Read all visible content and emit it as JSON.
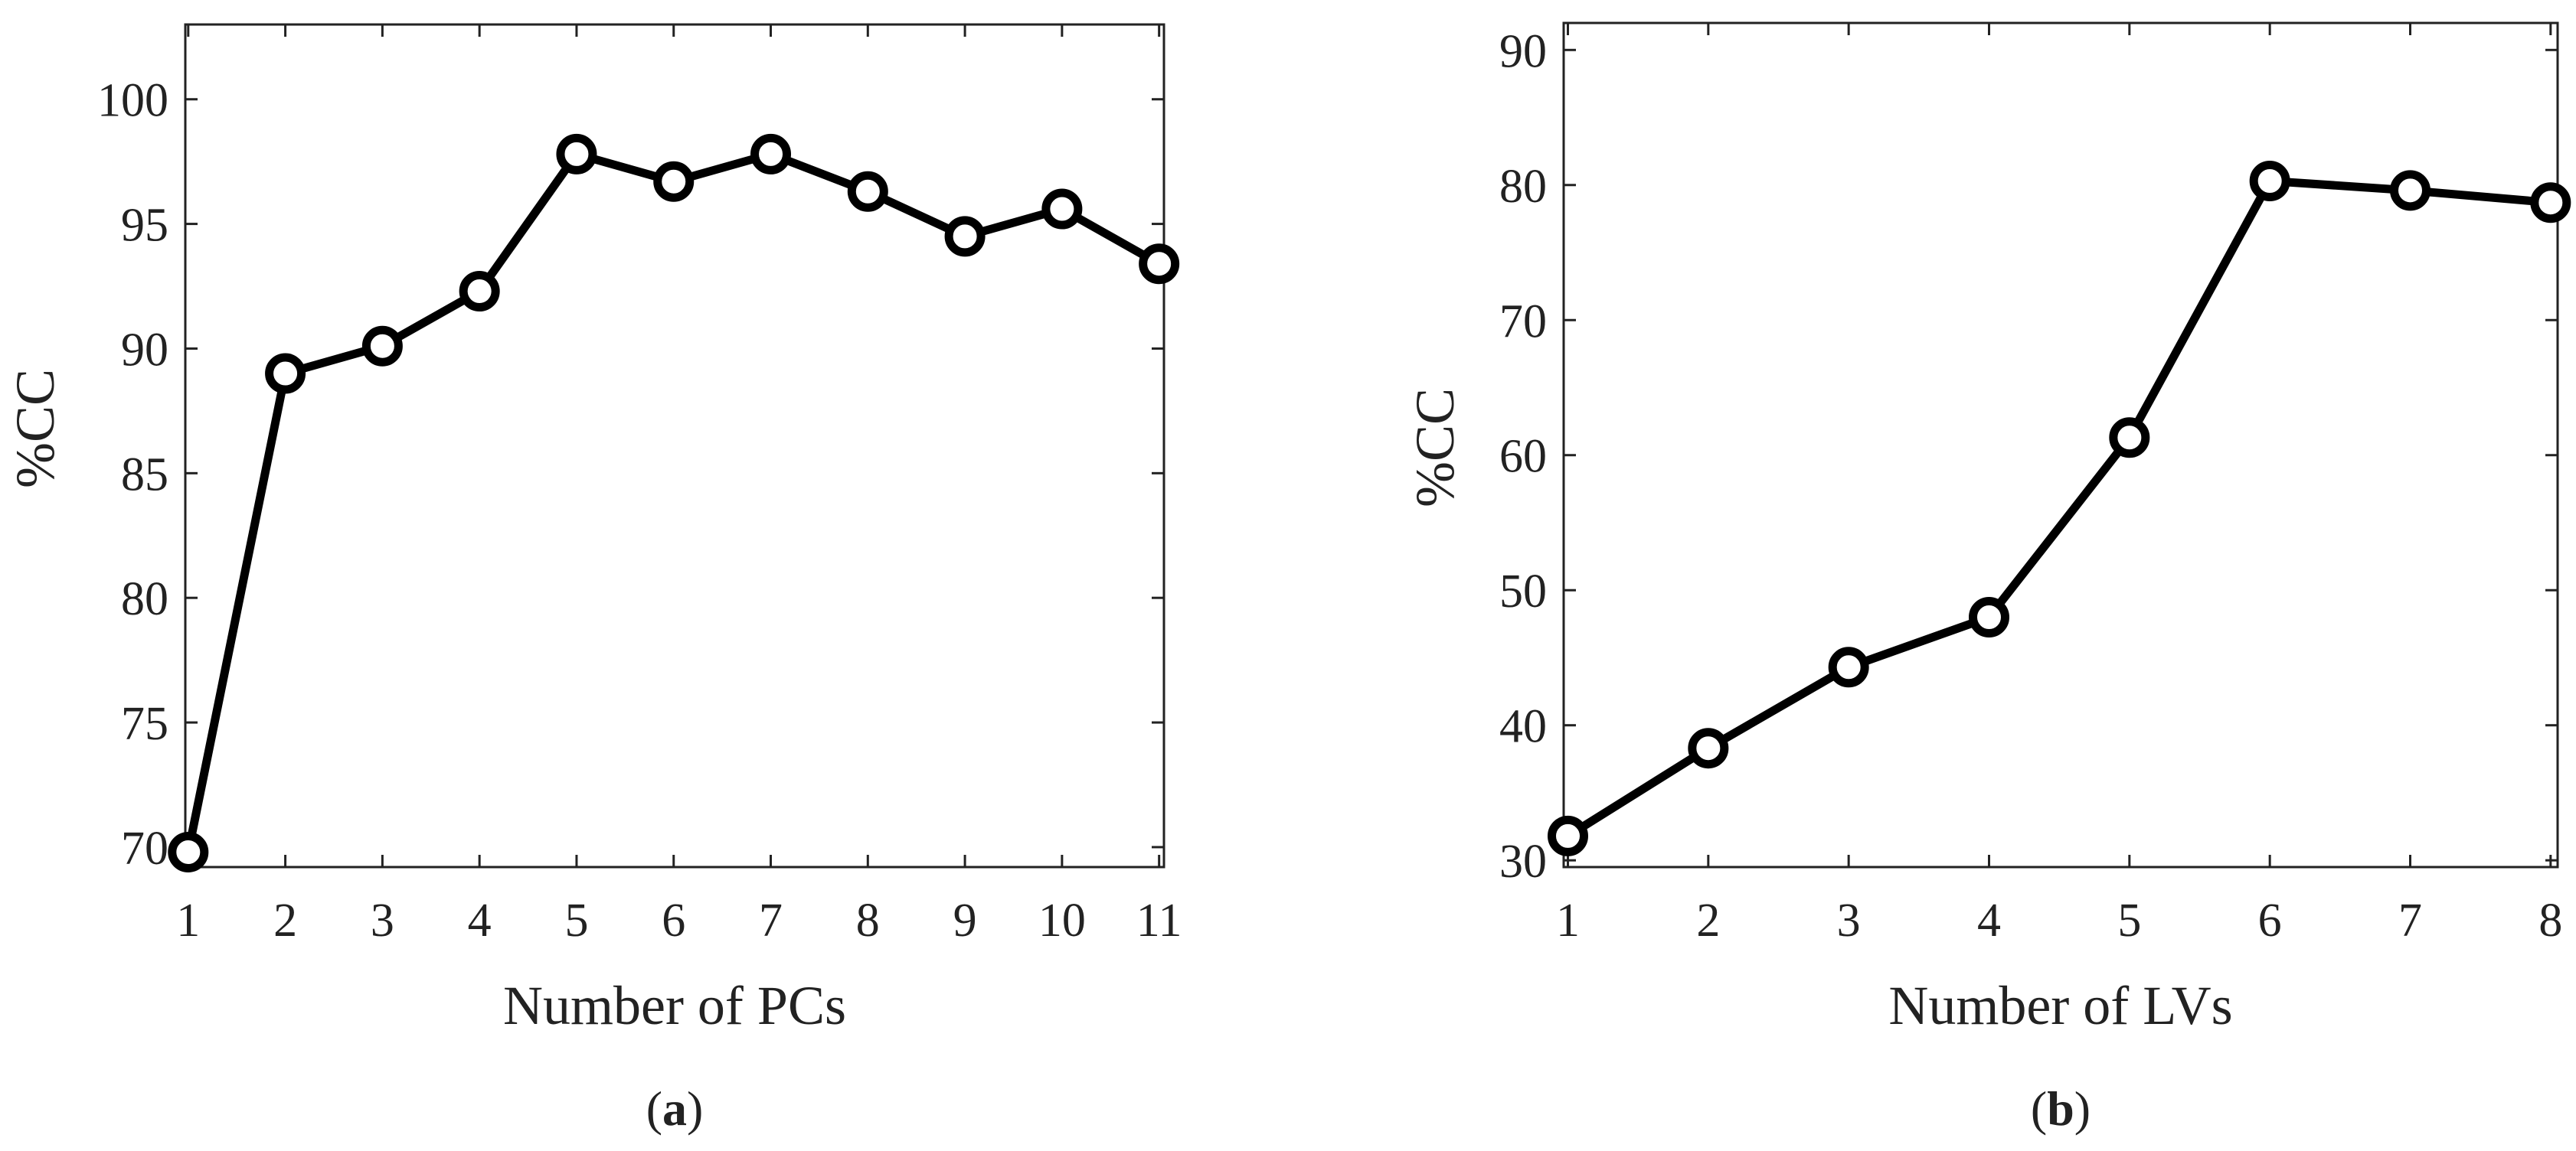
{
  "chart_data": [
    {
      "id": "a",
      "type": "line",
      "panel_label": "a",
      "title": "",
      "xlabel": "Number of PCs",
      "ylabel": "%CC",
      "xlim": [
        0.97,
        11.05
      ],
      "ylim": [
        69.2,
        103
      ],
      "xticks": [
        1,
        2,
        3,
        4,
        5,
        6,
        7,
        8,
        9,
        10,
        11
      ],
      "yticks": [
        70,
        75,
        80,
        85,
        90,
        95,
        100
      ],
      "grid": false,
      "marker": "circle",
      "series": [
        {
          "name": "%CC",
          "x": [
            1,
            2,
            3,
            4,
            5,
            6,
            7,
            8,
            9,
            10,
            11
          ],
          "values": [
            69.8,
            89.0,
            90.1,
            92.3,
            97.8,
            96.7,
            97.8,
            96.3,
            94.5,
            95.6,
            93.4
          ]
        }
      ]
    },
    {
      "id": "b",
      "type": "line",
      "panel_label": "b",
      "title": "",
      "xlabel": "Number of LVs",
      "ylabel": "%CC",
      "xlim": [
        0.97,
        8.05
      ],
      "ylim": [
        29.5,
        92
      ],
      "xticks": [
        1,
        2,
        3,
        4,
        5,
        6,
        7,
        8
      ],
      "yticks": [
        30,
        40,
        50,
        60,
        70,
        80,
        90
      ],
      "grid": false,
      "marker": "circle",
      "series": [
        {
          "name": "%CC",
          "x": [
            1,
            2,
            3,
            4,
            5,
            6,
            7,
            8
          ],
          "values": [
            31.8,
            38.3,
            44.3,
            48.0,
            61.3,
            80.3,
            79.6,
            78.7
          ]
        }
      ]
    }
  ]
}
